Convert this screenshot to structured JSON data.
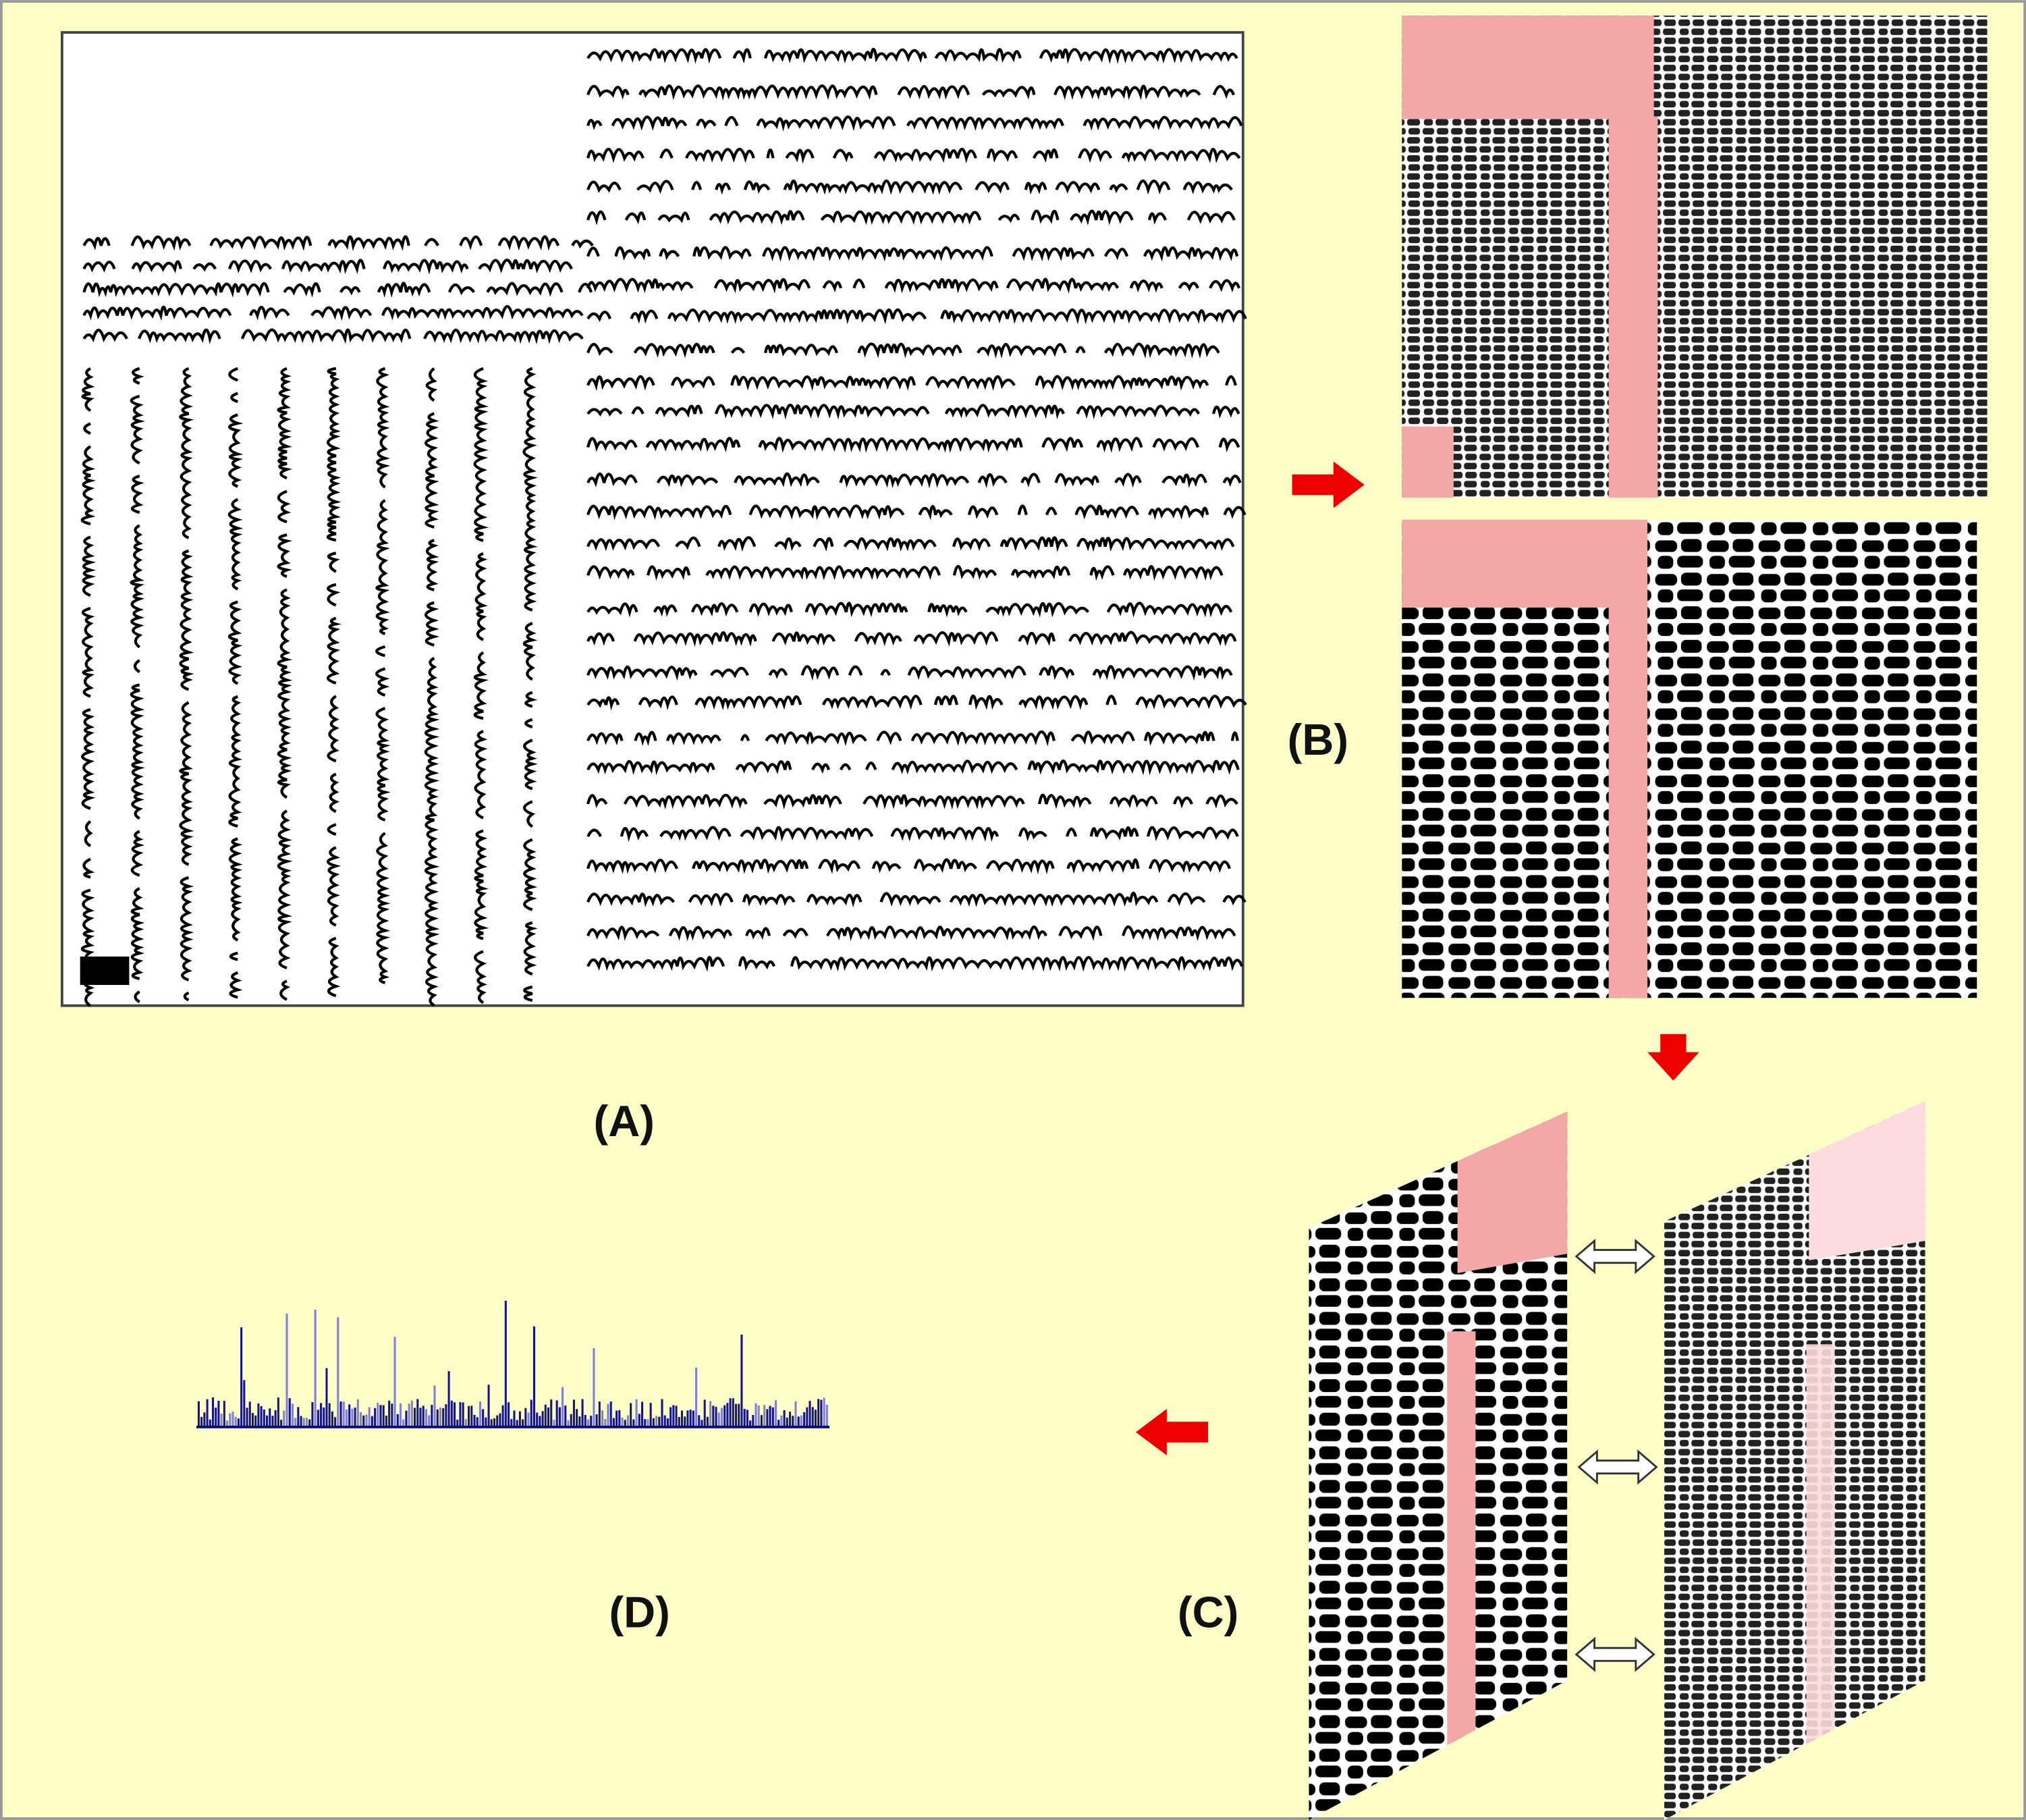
{
  "panels": {
    "a": {
      "label": "(A)"
    },
    "b": {
      "label": "(B)"
    },
    "c": {
      "label": "(C)"
    },
    "d": {
      "label": "(D)"
    }
  }
}
